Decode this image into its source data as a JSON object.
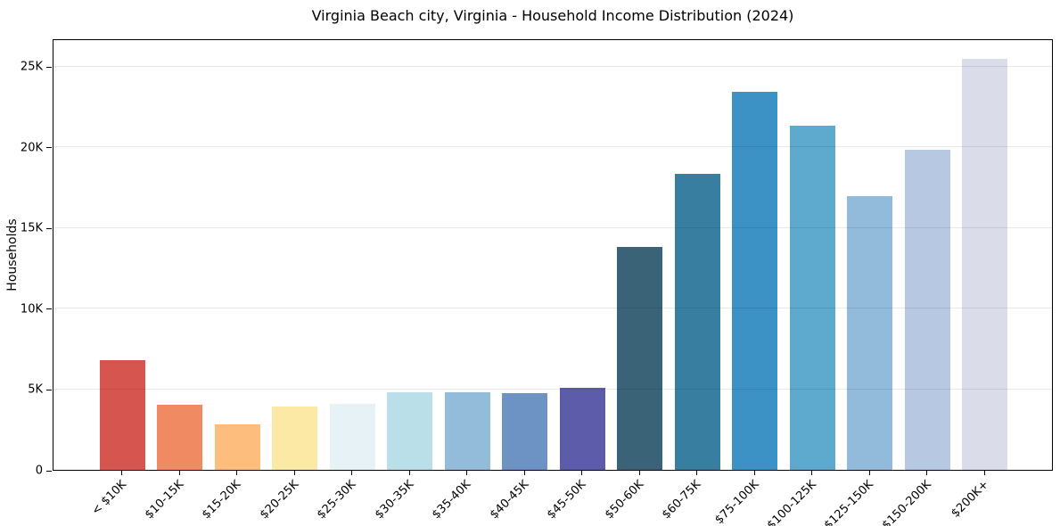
{
  "chart_data": {
    "type": "bar",
    "title": "Virginia Beach city, Virginia - Household Income Distribution (2024)",
    "xlabel": "",
    "ylabel": "Households",
    "categories": [
      "< $10K",
      "$10-15K",
      "$15-20K",
      "$20-25K",
      "$25-30K",
      "$30-35K",
      "$35-40K",
      "$40-45K",
      "$45-50K",
      "$50-60K",
      "$60-75K",
      "$75-100K",
      "$100-125K",
      "$125-150K",
      "$150-200K",
      "$200K+"
    ],
    "values": [
      6770,
      4010,
      2790,
      3900,
      4080,
      4800,
      4810,
      4760,
      5070,
      13800,
      18300,
      23400,
      21300,
      16950,
      19800,
      25420
    ],
    "bar_colors": [
      "#d6564f",
      "#f08a63",
      "#fcbd7d",
      "#fde9a6",
      "#e6f2f5",
      "#bbdfe9",
      "#93bcdb",
      "#6c93c4",
      "#5d5cab",
      "#3a6378",
      "#387ea1",
      "#3c91c5",
      "#5ea9ce",
      "#92badb",
      "#b7c8e2",
      "#dadce9"
    ],
    "yticks": [
      {
        "value": 0,
        "label": "0"
      },
      {
        "value": 5000,
        "label": "5K"
      },
      {
        "value": 10000,
        "label": "10K"
      },
      {
        "value": 15000,
        "label": "15K"
      },
      {
        "value": 20000,
        "label": "20K"
      },
      {
        "value": 25000,
        "label": "25K"
      }
    ],
    "ylim": [
      0,
      26700
    ],
    "grid": "horizontal",
    "legend_position": "none",
    "background_color": "#ffffff",
    "gridline_color": "#e8e8e8",
    "spine_color": "#000000"
  }
}
